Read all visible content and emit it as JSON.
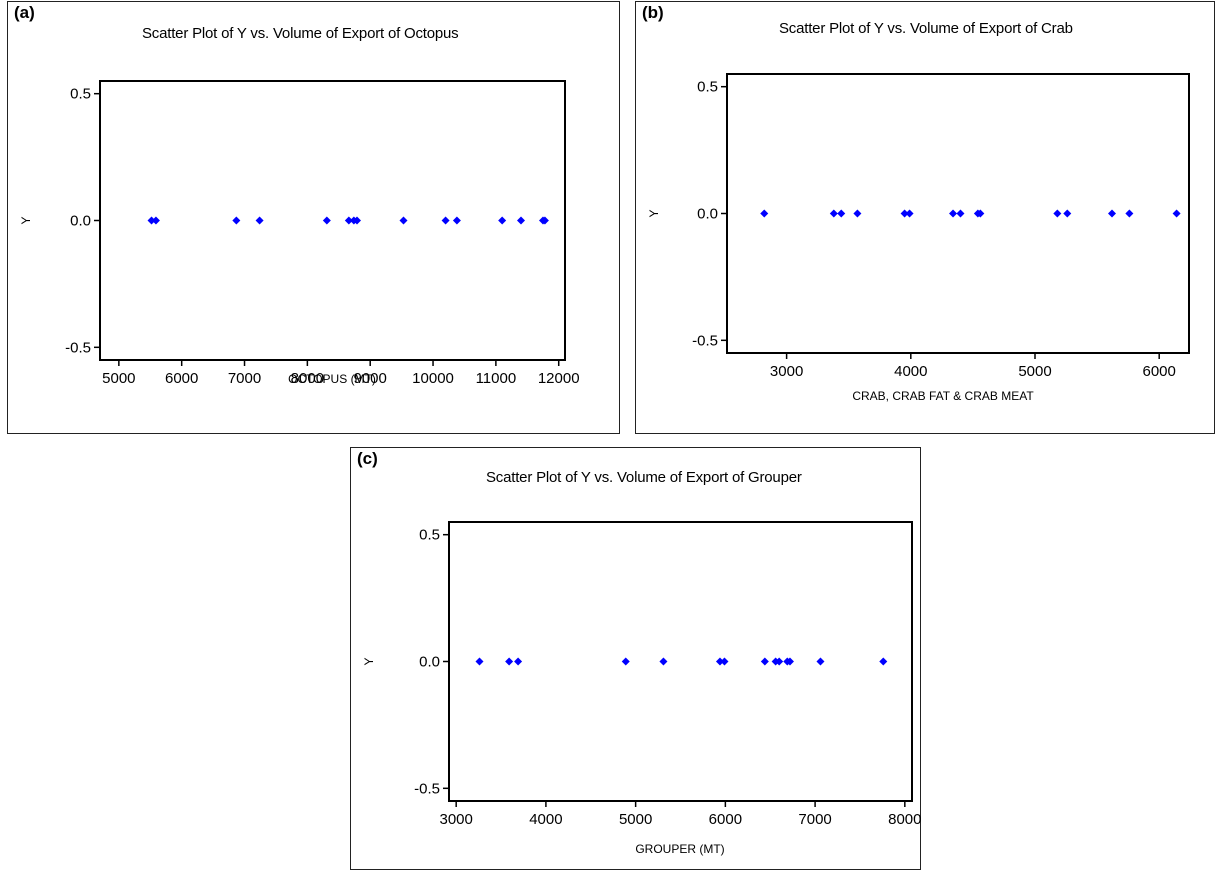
{
  "chart_data": [
    {
      "panel_label": "(a)",
      "type": "scatter",
      "title": "Scatter Plot of Y vs. Volume of Export of Octopus",
      "xlabel": "OCTOPUS (MT)",
      "ylabel": "Y",
      "xlim": [
        4700,
        12100
      ],
      "ylim": [
        -0.55,
        0.55
      ],
      "xticks": [
        5000,
        6000,
        7000,
        8000,
        9000,
        10000,
        11000,
        12000
      ],
      "xtick_labels": [
        "5000",
        "6000",
        "7000",
        "8000",
        "9000",
        "10000",
        "11000",
        "12000"
      ],
      "yticks": [
        0.5,
        0.0,
        -0.5
      ],
      "ytick_labels": [
        "0.5",
        "0.0",
        "-0.5"
      ],
      "marker_color": "#0000ff",
      "x": [
        5520,
        5590,
        6870,
        7240,
        8310,
        8660,
        8740,
        8790,
        9530,
        10200,
        10380,
        11100,
        11400,
        11750,
        11780
      ],
      "y": [
        0,
        0,
        0,
        0,
        0,
        0,
        0,
        0,
        0,
        0,
        0,
        0,
        0,
        0,
        0
      ]
    },
    {
      "panel_label": "(b)",
      "type": "scatter",
      "title": "Scatter Plot of Y vs. Volume of Export of Crab",
      "xlabel": "CRAB, CRAB FAT & CRAB MEAT",
      "ylabel": "Y",
      "xlim": [
        2520,
        6240
      ],
      "ylim": [
        -0.55,
        0.55
      ],
      "xticks": [
        3000,
        4000,
        5000,
        6000
      ],
      "xtick_labels": [
        "3000",
        "4000",
        "5000",
        "6000"
      ],
      "yticks": [
        0.5,
        0.0,
        -0.5
      ],
      "ytick_labels": [
        "0.5",
        "0.0",
        "-0.5"
      ],
      "marker_color": "#0000ff",
      "x": [
        2820,
        3380,
        3440,
        3570,
        3950,
        3990,
        4340,
        4400,
        4540,
        4560,
        5180,
        5260,
        5620,
        5760,
        6140
      ],
      "y": [
        0,
        0,
        0,
        0,
        0,
        0,
        0,
        0,
        0,
        0,
        0,
        0,
        0,
        0,
        0
      ]
    },
    {
      "panel_label": "(c)",
      "type": "scatter",
      "title": "Scatter Plot of Y vs. Volume of Export of Grouper",
      "xlabel": "GROUPER (MT)",
      "ylabel": "Y",
      "xlim": [
        2920,
        8080
      ],
      "ylim": [
        -0.55,
        0.55
      ],
      "xticks": [
        3000,
        4000,
        5000,
        6000,
        7000,
        8000
      ],
      "xtick_labels": [
        "3000",
        "4000",
        "5000",
        "6000",
        "7000",
        "8000"
      ],
      "yticks": [
        0.5,
        0.0,
        -0.5
      ],
      "ytick_labels": [
        "0.5",
        "0.0",
        "-0.5"
      ],
      "marker_color": "#0000ff",
      "x": [
        3260,
        3590,
        3690,
        4890,
        5310,
        5940,
        5990,
        6440,
        6560,
        6600,
        6690,
        6720,
        7060,
        7760
      ],
      "y": [
        0,
        0,
        0,
        0,
        0,
        0,
        0,
        0,
        0,
        0,
        0,
        0,
        0,
        0
      ]
    }
  ]
}
